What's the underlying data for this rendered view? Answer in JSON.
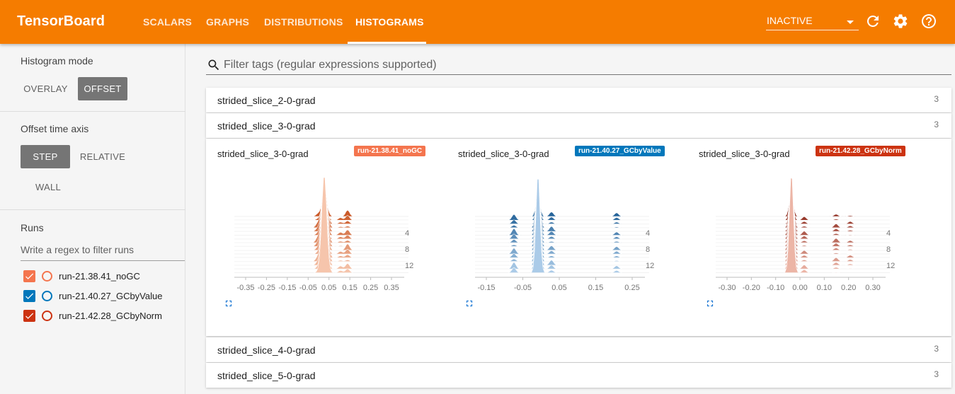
{
  "header": {
    "brand": "TensorBoard",
    "tabs": [
      {
        "label": "SCALARS",
        "active": false
      },
      {
        "label": "GRAPHS",
        "active": false
      },
      {
        "label": "DISTRIBUTIONS",
        "active": false
      },
      {
        "label": "HISTOGRAMS",
        "active": true
      }
    ],
    "run_select": "INACTIVE",
    "icons": [
      "refresh-icon",
      "gear-icon",
      "help-icon"
    ]
  },
  "sidebar": {
    "histogram_mode": {
      "title": "Histogram mode",
      "options": [
        "OVERLAY",
        "OFFSET"
      ],
      "selected": "OFFSET"
    },
    "offset_time_axis": {
      "title": "Offset time axis",
      "options": [
        "STEP",
        "RELATIVE",
        "WALL"
      ],
      "selected": "STEP"
    },
    "runs": {
      "title": "Runs",
      "filter_placeholder": "Write a regex to filter runs",
      "items": [
        {
          "name": "run-21.38.41_noGC",
          "color": "#f4754e",
          "checked": true
        },
        {
          "name": "run-21.40.27_GCbyValue",
          "color": "#0077bb",
          "checked": true
        },
        {
          "name": "run-21.42.28_GCbyNorm",
          "color": "#cc3311",
          "checked": true
        }
      ]
    }
  },
  "main": {
    "filter_placeholder": "Filter tags (regular expressions supported)",
    "cards": [
      {
        "title": "strided_slice_2-0-grad",
        "count": "3",
        "expanded": false
      },
      {
        "title": "strided_slice_3-0-grad",
        "count": "3",
        "expanded": true
      },
      {
        "title": "strided_slice_4-0-grad",
        "count": "3",
        "expanded": false
      },
      {
        "title": "strided_slice_5-0-grad",
        "count": "3",
        "expanded": false
      }
    ],
    "charts": [
      {
        "title": "strided_slice_3-0-grad",
        "run": "run-21.38.41_noGC",
        "color": "#f4754e",
        "dark": "#c1440e",
        "light": "#fcd3bd",
        "x_ticks": [
          "-0.35",
          "-0.25",
          "-0.15",
          "-0.05",
          "0.05",
          "0.15",
          "0.25",
          "0.35"
        ],
        "y_ticks": [
          "4",
          "8",
          "12"
        ]
      },
      {
        "title": "strided_slice_3-0-grad",
        "run": "run-21.40.27_GCbyValue",
        "color": "#0077bb",
        "dark": "#0b4f8a",
        "light": "#bdd9f2",
        "x_ticks": [
          "-0.15",
          "-0.05",
          "0.05",
          "0.15",
          "0.25"
        ],
        "y_ticks": [
          "4",
          "8",
          "12"
        ]
      },
      {
        "title": "strided_slice_3-0-grad",
        "run": "run-21.42.28_GCbyNorm",
        "color": "#cc3311",
        "dark": "#7f1508",
        "light": "#f8c7b8",
        "x_ticks": [
          "-0.30",
          "-0.20",
          "-0.10",
          "0.00",
          "0.10",
          "0.20",
          "0.30"
        ],
        "y_ticks": [
          "4",
          "8",
          "12"
        ]
      }
    ]
  }
}
